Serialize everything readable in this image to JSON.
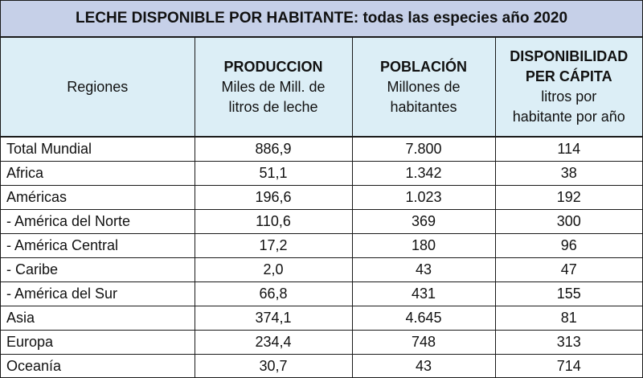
{
  "title": "LECHE DISPONIBLE POR HABITANTE: todas las especies año 2020",
  "headers": {
    "regiones": "Regiones",
    "produccion_bold": "PRODUCCION",
    "produccion_line1": "Miles de Mill. de",
    "produccion_line2": "litros de leche",
    "poblacion_bold": "POBLACIÓN",
    "poblacion_line1": "Millones de",
    "poblacion_line2": "habitantes",
    "disp_bold1": "DISPONIBILIDAD",
    "disp_bold2": "PER CÁPITA",
    "disp_line1": "litros por",
    "disp_line2": "habitante por año"
  },
  "rows": [
    {
      "region": "Total Mundial",
      "produccion": "886,9",
      "poblacion": "7.800",
      "disponibilidad": "114"
    },
    {
      "region": "Africa",
      "produccion": "51,1",
      "poblacion": "1.342",
      "disponibilidad": "38"
    },
    {
      "region": "Américas",
      "produccion": "196,6",
      "poblacion": "1.023",
      "disponibilidad": "192"
    },
    {
      "region": "- América del Norte",
      "produccion": "110,6",
      "poblacion": "369",
      "disponibilidad": "300"
    },
    {
      "region": "- América Central",
      "produccion": "17,2",
      "poblacion": "180",
      "disponibilidad": "96"
    },
    {
      "region": "- Caribe",
      "produccion": "2,0",
      "poblacion": "43",
      "disponibilidad": "47"
    },
    {
      "region": "- América del Sur",
      "produccion": "66,8",
      "poblacion": "431",
      "disponibilidad": "155"
    },
    {
      "region": "Asia",
      "produccion": "374,1",
      "poblacion": "4.645",
      "disponibilidad": "81"
    },
    {
      "region": "Europa",
      "produccion": "234,4",
      "poblacion": "748",
      "disponibilidad": "313"
    },
    {
      "region": "Oceanía",
      "produccion": "30,7",
      "poblacion": "43",
      "disponibilidad": "714"
    }
  ]
}
